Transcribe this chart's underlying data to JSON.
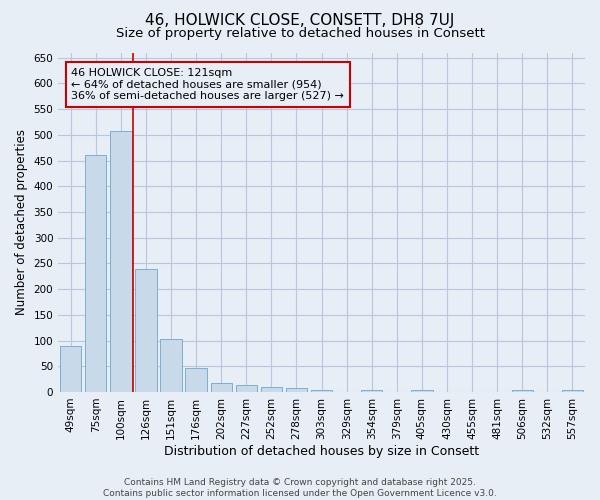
{
  "title": "46, HOLWICK CLOSE, CONSETT, DH8 7UJ",
  "subtitle": "Size of property relative to detached houses in Consett",
  "xlabel": "Distribution of detached houses by size in Consett",
  "ylabel": "Number of detached properties",
  "categories": [
    "49sqm",
    "75sqm",
    "100sqm",
    "126sqm",
    "151sqm",
    "176sqm",
    "202sqm",
    "227sqm",
    "252sqm",
    "278sqm",
    "303sqm",
    "329sqm",
    "354sqm",
    "379sqm",
    "405sqm",
    "430sqm",
    "455sqm",
    "481sqm",
    "506sqm",
    "532sqm",
    "557sqm"
  ],
  "values": [
    90,
    460,
    507,
    240,
    103,
    47,
    17,
    14,
    10,
    8,
    4,
    0,
    4,
    0,
    3,
    0,
    0,
    0,
    3,
    0,
    4
  ],
  "bar_color": "#c8d9ea",
  "bar_edge_color": "#7bafd4",
  "grid_color": "#b8c8dc",
  "background_color": "#e8eef6",
  "vline_x": 2.5,
  "vline_color": "#cc0000",
  "annotation_text": "46 HOLWICK CLOSE: 121sqm\n← 64% of detached houses are smaller (954)\n36% of semi-detached houses are larger (527) →",
  "ylim": [
    0,
    660
  ],
  "yticks": [
    0,
    50,
    100,
    150,
    200,
    250,
    300,
    350,
    400,
    450,
    500,
    550,
    600,
    650
  ],
  "footer_text": "Contains HM Land Registry data © Crown copyright and database right 2025.\nContains public sector information licensed under the Open Government Licence v3.0.",
  "title_fontsize": 11,
  "subtitle_fontsize": 9.5,
  "xlabel_fontsize": 9,
  "ylabel_fontsize": 8.5,
  "tick_fontsize": 7.5,
  "annotation_fontsize": 8,
  "footer_fontsize": 6.5
}
